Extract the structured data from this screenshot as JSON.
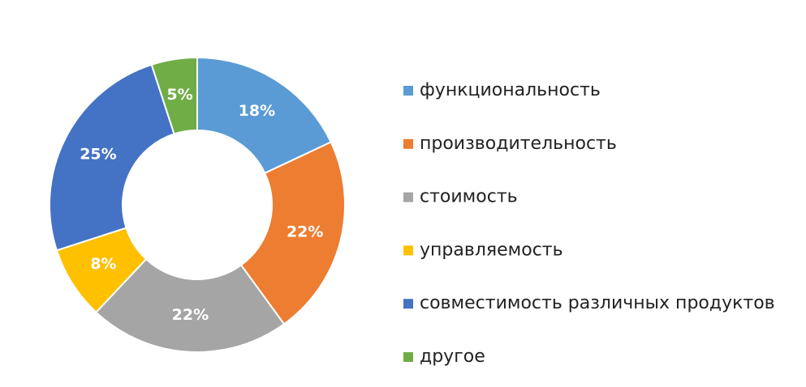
{
  "chart_data": {
    "type": "donut",
    "categories": [
      "функциональность",
      "производительность",
      "стоимость",
      "управляемость",
      "совместимость различных продуктов",
      "другое"
    ],
    "values": [
      18,
      22,
      22,
      8,
      25,
      5
    ],
    "value_labels": [
      "18%",
      "22%",
      "22%",
      "8%",
      "25%",
      "5%"
    ],
    "colors": [
      "#5b9bd5",
      "#ed7d31",
      "#a5a5a5",
      "#ffc000",
      "#4472c4",
      "#70ad47"
    ],
    "legend": "right"
  }
}
